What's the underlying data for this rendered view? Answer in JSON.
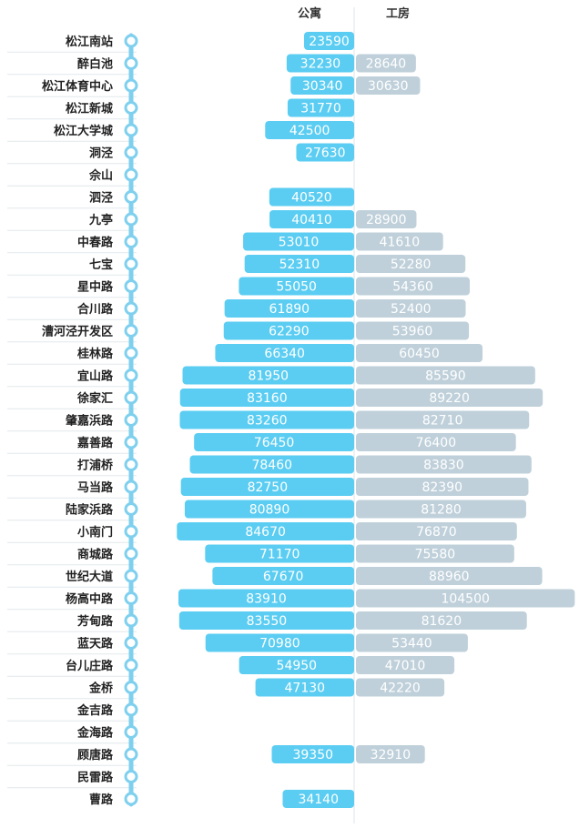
{
  "chart_data": {
    "type": "bar",
    "orientation": "horizontal-butterfly",
    "categories": [
      "松江南站",
      "醉白池",
      "松江体育中心",
      "松江新城",
      "松江大学城",
      "洞泾",
      "佘山",
      "泗泾",
      "九亭",
      "中春路",
      "七宝",
      "星中路",
      "合川路",
      "漕河泾开发区",
      "桂林路",
      "宜山路",
      "徐家汇",
      "肇嘉浜路",
      "嘉善路",
      "打浦桥",
      "马当路",
      "陆家浜路",
      "小南门",
      "商城路",
      "世纪大道",
      "杨高中路",
      "芳甸路",
      "蓝天路",
      "台儿庄路",
      "金桥",
      "金吉路",
      "金海路",
      "顾唐路",
      "民雷路",
      "曹路"
    ],
    "series": [
      {
        "name": "公寓",
        "color": "#5bcdf2",
        "values": [
          23590,
          32230,
          30340,
          31770,
          42500,
          27630,
          null,
          40520,
          40410,
          53010,
          52310,
          55050,
          61890,
          62290,
          66340,
          81950,
          83160,
          83260,
          76450,
          78460,
          82750,
          80890,
          84670,
          71170,
          67670,
          83910,
          83550,
          70980,
          54950,
          47130,
          null,
          null,
          39350,
          null,
          34140
        ]
      },
      {
        "name": "工房",
        "color": "#bfd0da",
        "values": [
          null,
          28640,
          30630,
          null,
          null,
          null,
          null,
          null,
          28900,
          41610,
          52280,
          54360,
          52400,
          53960,
          60450,
          85590,
          89220,
          82710,
          76400,
          83830,
          82390,
          81280,
          76870,
          75580,
          88960,
          104500,
          81620,
          53440,
          47010,
          42220,
          null,
          null,
          32910,
          null,
          null
        ]
      }
    ],
    "line_color": "#7fd0ee"
  }
}
